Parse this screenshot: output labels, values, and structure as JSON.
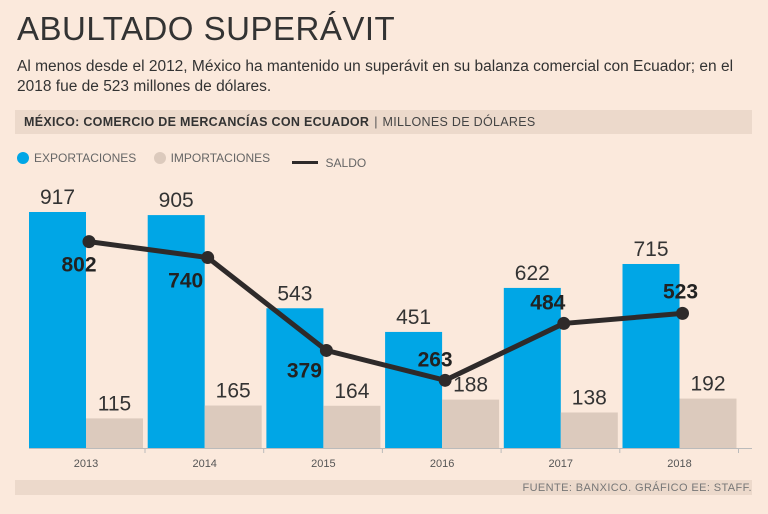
{
  "title": "ABULTADO SUPERÁVIT",
  "subtitle": "Al menos desde el 2012, México ha mantenido un superávit en su balanza comercial con Ecuador; en el 2018 fue de 523 millones de dólares.",
  "header": {
    "label": "MÉXICO: COMERCIO DE MERCANCÍAS CON ECUADOR",
    "separator": "|",
    "units": "MILLONES DE DÓLARES"
  },
  "legend": {
    "exports": "EXPORTACIONES",
    "imports": "IMPORTACIONES",
    "balance": "SALDO"
  },
  "source": "FUENTE: BANXICO. GRÁFICO EE: STAFF.",
  "colors": {
    "exports": "#00a6e6",
    "imports": "#dccabd",
    "balance": "#2e2a2a"
  },
  "chart_data": {
    "type": "bar",
    "title": "MÉXICO: COMERCIO DE MERCANCÍAS CON ECUADOR",
    "ylabel": "MILLONES DE DÓLARES",
    "xlabel": "",
    "categories": [
      "2013",
      "2014",
      "2015",
      "2016",
      "2017",
      "2018"
    ],
    "ylim": [
      0,
      917
    ],
    "grid": false,
    "series": [
      {
        "name": "EXPORTACIONES",
        "type": "bar",
        "values": [
          917,
          905,
          543,
          451,
          622,
          715
        ]
      },
      {
        "name": "IMPORTACIONES",
        "type": "bar",
        "values": [
          115,
          165,
          164,
          188,
          138,
          192
        ]
      },
      {
        "name": "SALDO",
        "type": "line",
        "values": [
          802,
          740,
          379,
          263,
          484,
          523
        ]
      }
    ]
  }
}
